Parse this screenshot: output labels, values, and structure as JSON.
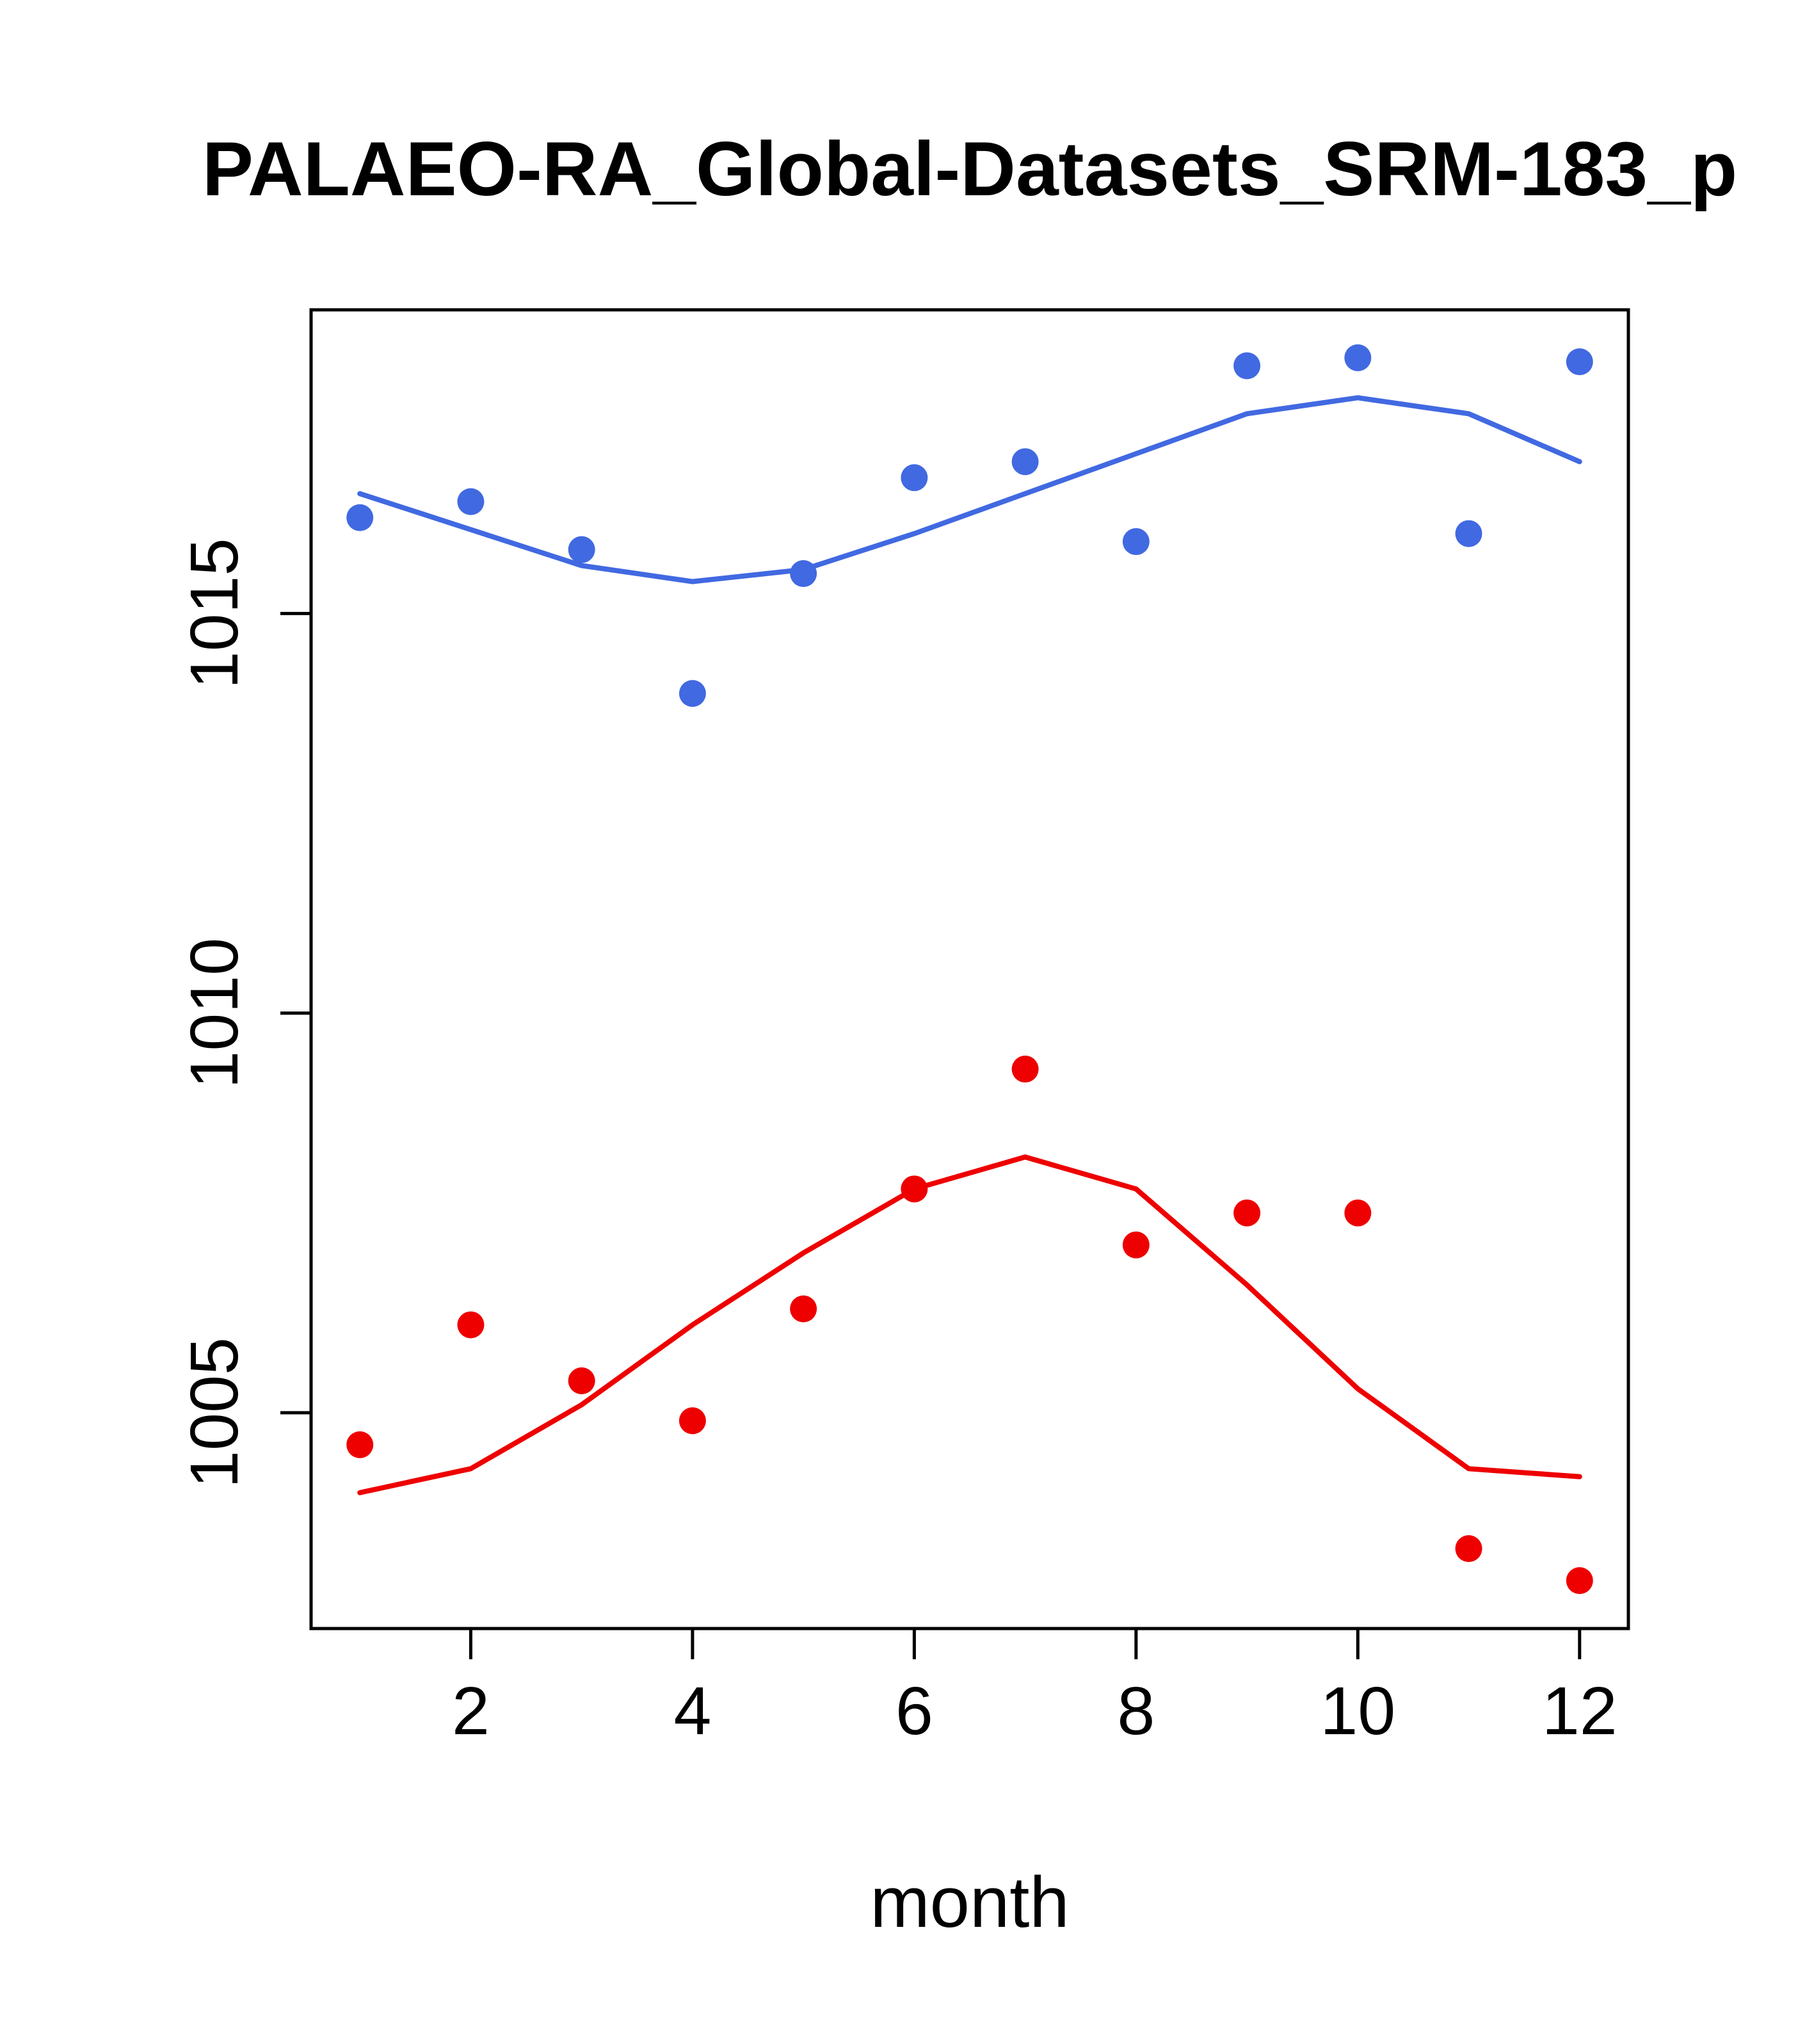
{
  "chart_data": {
    "type": "scatter",
    "title": "PALAEO-RA_Global-Datasets_SRM-183_p",
    "xlabel": "month",
    "ylabel": "",
    "x": [
      1,
      2,
      3,
      4,
      5,
      6,
      7,
      8,
      9,
      10,
      11,
      12
    ],
    "series": [
      {
        "name": "series-1-points",
        "style": "points",
        "color": "#4169e1",
        "values": [
          1016.2,
          1016.4,
          1015.8,
          1014.0,
          1015.5,
          1016.7,
          1016.9,
          1015.9,
          1018.1,
          1018.2,
          1016.0,
          1018.15
        ]
      },
      {
        "name": "series-1-smooth-line",
        "style": "line",
        "color": "#4169e1",
        "values": [
          1016.5,
          1016.05,
          1015.6,
          1015.4,
          1015.55,
          1016.0,
          1016.5,
          1017.0,
          1017.5,
          1017.7,
          1017.5,
          1016.9
        ]
      },
      {
        "name": "series-2-points",
        "style": "points",
        "color": "#ee0000",
        "values": [
          1004.6,
          1006.1,
          1005.4,
          1004.9,
          1006.3,
          1007.8,
          1009.3,
          1007.1,
          1007.5,
          1007.5,
          1003.3,
          1002.9
        ]
      },
      {
        "name": "series-2-smooth-line",
        "style": "line",
        "color": "#ee0000",
        "values": [
          1004.0,
          1004.3,
          1005.1,
          1006.1,
          1007.0,
          1007.8,
          1008.2,
          1007.8,
          1006.6,
          1005.3,
          1004.3,
          1004.2
        ]
      }
    ],
    "xlim": [
      0.56,
      12.44
    ],
    "ylim": [
      1002.3,
      1018.8
    ],
    "xticks": [
      2,
      4,
      6,
      8,
      10,
      12
    ],
    "yticks": [
      1005,
      1010,
      1015
    ],
    "grid": false,
    "legend": "none",
    "box_color": "#000000"
  }
}
